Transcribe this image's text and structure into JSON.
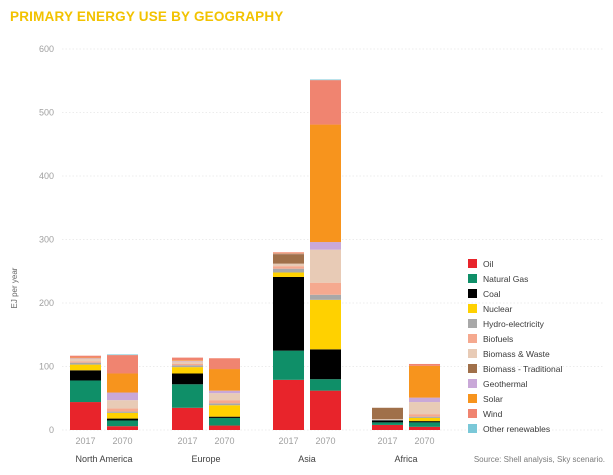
{
  "chart_data": {
    "type": "bar",
    "stacked": true,
    "title": "PRIMARY ENERGY USE BY GEOGRAPHY",
    "ylabel": "EJ per year",
    "ylim": [
      0,
      600
    ],
    "yticks": [
      "0",
      "100",
      "200",
      "300",
      "400",
      "500",
      "600"
    ],
    "grid": true,
    "legend_position": "right",
    "groups": [
      "North America",
      "Europe",
      "Asia",
      "Africa"
    ],
    "bar_labels": [
      "2017",
      "2070"
    ],
    "series": [
      {
        "name": "Oil",
        "color": "#e8242b",
        "values": [
          [
            44,
            6
          ],
          [
            35,
            7
          ],
          [
            79,
            62
          ],
          [
            8,
            5
          ]
        ]
      },
      {
        "name": "Natural Gas",
        "color": "#0f8f68",
        "values": [
          [
            34,
            9
          ],
          [
            37,
            12
          ],
          [
            46,
            18
          ],
          [
            4,
            7
          ]
        ]
      },
      {
        "name": "Coal",
        "color": "#000000",
        "values": [
          [
            16,
            3
          ],
          [
            17,
            2
          ],
          [
            116,
            47
          ],
          [
            3,
            2
          ]
        ]
      },
      {
        "name": "Nuclear",
        "color": "#ffd100",
        "values": [
          [
            9,
            9
          ],
          [
            10,
            18
          ],
          [
            7,
            78
          ],
          [
            0,
            5
          ]
        ]
      },
      {
        "name": "Hydro-electricity",
        "color": "#a8a8a8",
        "values": [
          [
            3,
            2
          ],
          [
            3,
            3
          ],
          [
            6,
            8
          ],
          [
            1,
            2
          ]
        ]
      },
      {
        "name": "Biofuels",
        "color": "#f5a98f",
        "values": [
          [
            2,
            5
          ],
          [
            2,
            5
          ],
          [
            4,
            19
          ],
          [
            0,
            4
          ]
        ]
      },
      {
        "name": "Biomass & Waste",
        "color": "#e8cbb6",
        "values": [
          [
            4,
            13
          ],
          [
            4,
            11
          ],
          [
            4,
            52
          ],
          [
            1,
            19
          ]
        ]
      },
      {
        "name": "Biomass - Traditional",
        "color": "#a0704a",
        "values": [
          [
            0,
            0
          ],
          [
            0,
            0
          ],
          [
            15,
            0
          ],
          [
            18,
            0
          ]
        ]
      },
      {
        "name": "Geothermal",
        "color": "#c9a8d8",
        "values": [
          [
            1,
            12
          ],
          [
            1,
            4
          ],
          [
            1,
            12
          ],
          [
            0,
            7
          ]
        ]
      },
      {
        "name": "Solar",
        "color": "#f7941d",
        "values": [
          [
            1,
            30
          ],
          [
            1,
            34
          ],
          [
            1,
            185
          ],
          [
            0,
            50
          ]
        ]
      },
      {
        "name": "Wind",
        "color": "#f08470",
        "values": [
          [
            3,
            29
          ],
          [
            4,
            17
          ],
          [
            1,
            70
          ],
          [
            0,
            3
          ]
        ]
      },
      {
        "name": "Other renewables",
        "color": "#7ac8d8",
        "values": [
          [
            0,
            1
          ],
          [
            0,
            0
          ],
          [
            0,
            1
          ],
          [
            0,
            0
          ]
        ]
      }
    ],
    "source": "Source: Shell analysis, Sky scenario."
  }
}
